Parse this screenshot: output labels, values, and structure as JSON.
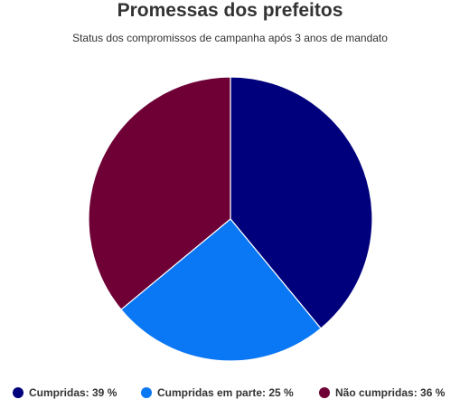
{
  "chart_data": {
    "type": "pie",
    "title": "Promessas dos prefeitos",
    "subtitle": "Status dos compromissos de campanha após 3 anos de mandato",
    "slices": [
      {
        "name": "Cumpridas",
        "value": 39,
        "color": "#00007c",
        "legend_label": "Cumpridas: 39 %"
      },
      {
        "name": "Cumpridas em parte",
        "value": 25,
        "color": "#0a77f4",
        "legend_label": "Cumpridas em parte: 25 %"
      },
      {
        "name": "Não cumpridas",
        "value": 36,
        "color": "#6e0036",
        "legend_label": "Não cumpridas: 36 %"
      }
    ],
    "legend_position": "bottom"
  }
}
